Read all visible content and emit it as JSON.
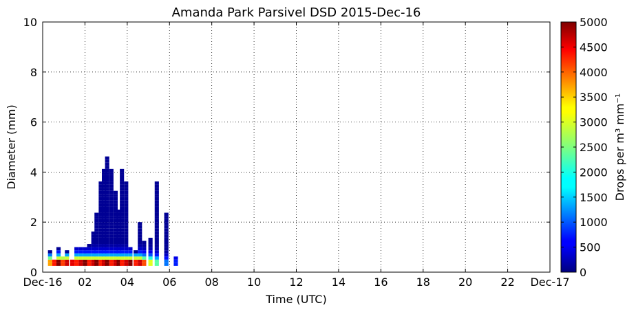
{
  "chart_data": {
    "type": "heatmap",
    "title": "Amanda Park Parsivel DSD 2015-Dec-16",
    "xlabel": "Time (UTC)",
    "ylabel": "Diameter (mm)",
    "xlim": [
      0,
      24
    ],
    "ylim": [
      0,
      10
    ],
    "x_ticks": [
      0,
      2,
      4,
      6,
      8,
      10,
      12,
      14,
      16,
      18,
      20,
      22,
      24
    ],
    "x_tick_labels": [
      "Dec-16",
      "02",
      "04",
      "06",
      "08",
      "10",
      "12",
      "14",
      "16",
      "18",
      "20",
      "22",
      "Dec-17"
    ],
    "y_ticks": [
      0,
      2,
      4,
      6,
      8,
      10
    ],
    "y_tick_labels": [
      "0",
      "2",
      "4",
      "6",
      "8",
      "10"
    ],
    "grid": true,
    "colorbar": {
      "label": "Drops per m³ mm⁻¹",
      "colormap": "jet",
      "range": [
        0,
        5000
      ],
      "ticks": [
        0,
        500,
        1000,
        1500,
        2000,
        2500,
        3000,
        3500,
        4000,
        4500,
        5000
      ],
      "tick_labels": [
        "0",
        "500",
        "1000",
        "1500",
        "2000",
        "2500",
        "3000",
        "3500",
        "4000",
        "4500",
        "5000"
      ]
    },
    "columns": [
      {
        "t": 0.35,
        "d_max": 0.8,
        "peak": 4200
      },
      {
        "t": 0.55,
        "d_max": 0.5,
        "peak": 4600
      },
      {
        "t": 0.75,
        "d_max": 0.9,
        "peak": 5000
      },
      {
        "t": 0.95,
        "d_max": 0.6,
        "peak": 4800
      },
      {
        "t": 1.15,
        "d_max": 0.8,
        "peak": 5000
      },
      {
        "t": 1.4,
        "d_max": 0.5,
        "peak": 4500
      },
      {
        "t": 1.6,
        "d_max": 1.0,
        "peak": 5000
      },
      {
        "t": 1.8,
        "d_max": 1.0,
        "peak": 5000
      },
      {
        "t": 2.0,
        "d_max": 1.0,
        "peak": 5000
      },
      {
        "t": 2.2,
        "d_max": 1.1,
        "peak": 5000
      },
      {
        "t": 2.4,
        "d_max": 1.6,
        "peak": 5000
      },
      {
        "t": 2.55,
        "d_max": 2.3,
        "peak": 5000
      },
      {
        "t": 2.75,
        "d_max": 3.6,
        "peak": 5000
      },
      {
        "t": 2.9,
        "d_max": 4.1,
        "peak": 5000
      },
      {
        "t": 3.05,
        "d_max": 4.6,
        "peak": 5000
      },
      {
        "t": 3.25,
        "d_max": 4.1,
        "peak": 5000
      },
      {
        "t": 3.45,
        "d_max": 3.2,
        "peak": 5000
      },
      {
        "t": 3.6,
        "d_max": 2.4,
        "peak": 5000
      },
      {
        "t": 3.75,
        "d_max": 4.1,
        "peak": 5000
      },
      {
        "t": 3.95,
        "d_max": 3.6,
        "peak": 5000
      },
      {
        "t": 4.15,
        "d_max": 1.0,
        "peak": 5000
      },
      {
        "t": 4.4,
        "d_max": 0.8,
        "peak": 5000
      },
      {
        "t": 4.6,
        "d_max": 1.9,
        "peak": 5000
      },
      {
        "t": 4.8,
        "d_max": 1.2,
        "peak": 4000
      },
      {
        "t": 5.1,
        "d_max": 1.3,
        "peak": 3500
      },
      {
        "t": 5.4,
        "d_max": 3.6,
        "peak": 2500
      },
      {
        "t": 5.85,
        "d_max": 2.3,
        "peak": 1200
      },
      {
        "t": 6.3,
        "d_max": 0.6,
        "peak": 900
      }
    ]
  }
}
